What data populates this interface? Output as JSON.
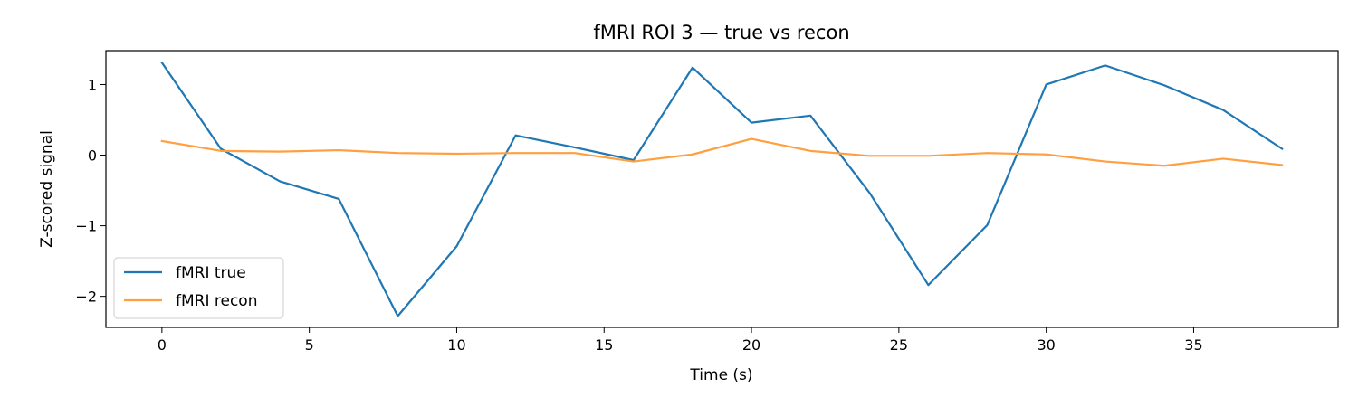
{
  "chart_data": {
    "type": "line",
    "title": "fMRI ROI 3 — true vs recon",
    "xlabel": "Time (s)",
    "ylabel": "Z-scored signal",
    "xlim": [
      -1.9,
      39.9
    ],
    "ylim": [
      -2.44,
      1.48
    ],
    "xticks": [
      0,
      5,
      10,
      15,
      20,
      25,
      30,
      35
    ],
    "xtick_labels": [
      "0",
      "5",
      "10",
      "15",
      "20",
      "25",
      "30",
      "35"
    ],
    "yticks": [
      1,
      0,
      -1,
      -2
    ],
    "ytick_labels": [
      "1",
      "0",
      "−1",
      "−2"
    ],
    "grid": false,
    "legend_position": "lower-left",
    "x": [
      0,
      2,
      4,
      6,
      8,
      10,
      12,
      14,
      16,
      18,
      20,
      22,
      24,
      26,
      28,
      30,
      32,
      34,
      36,
      38
    ],
    "series": [
      {
        "name": "fMRI true",
        "color": "#1f77b4",
        "values": [
          1.31,
          0.09,
          -0.37,
          -0.62,
          -2.28,
          -1.29,
          0.28,
          0.11,
          -0.07,
          1.24,
          0.46,
          0.56,
          -0.53,
          -1.84,
          -0.99,
          1.0,
          1.27,
          0.99,
          0.64,
          0.09
        ]
      },
      {
        "name": "fMRI recon",
        "color": "#ff9f40",
        "values": [
          0.2,
          0.06,
          0.05,
          0.07,
          0.03,
          0.02,
          0.03,
          0.03,
          -0.09,
          0.01,
          0.23,
          0.06,
          -0.01,
          -0.01,
          0.03,
          0.01,
          -0.09,
          -0.15,
          -0.05,
          -0.14
        ]
      }
    ]
  }
}
